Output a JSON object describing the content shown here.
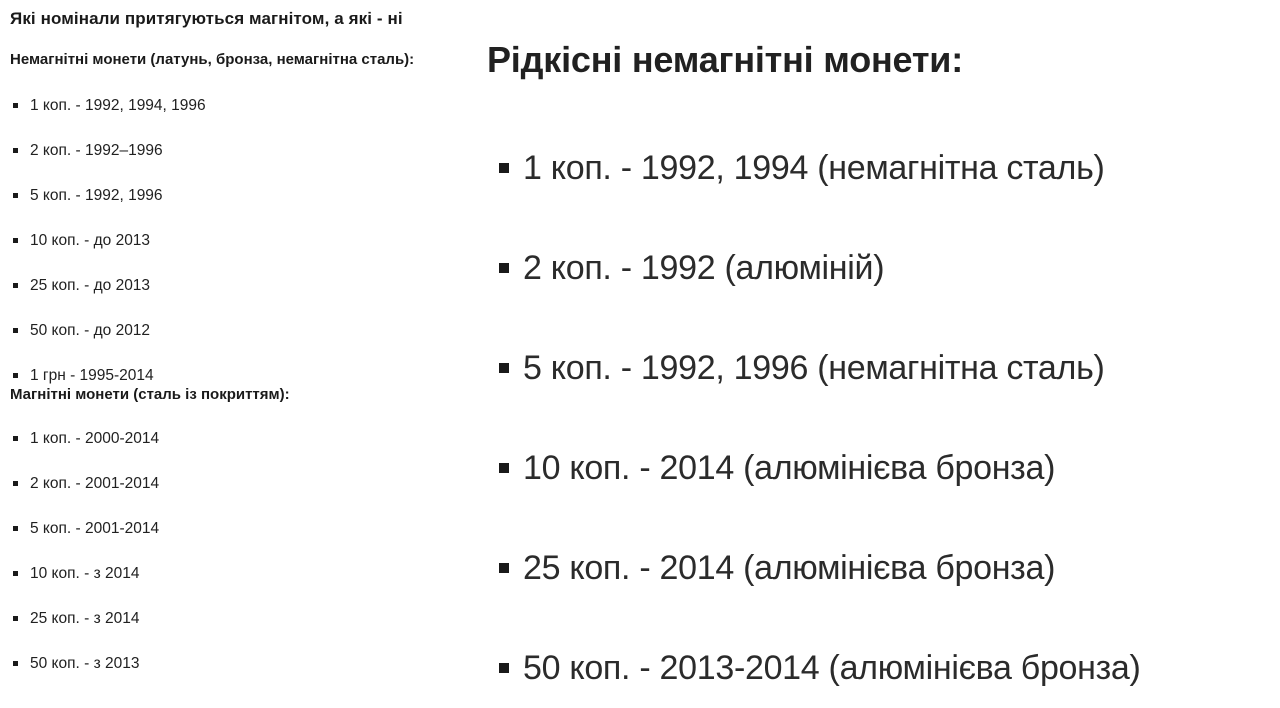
{
  "page": {
    "background_color": "#ffffff",
    "text_color": "#212121",
    "bullet_color": "#1a1a1a"
  },
  "left_column": {
    "title": "Які номінали притягуються магнітом, а які - ні",
    "sections": [
      {
        "heading": "Немагнітні монети (латунь, бронза, немагнітна сталь):",
        "items": [
          "1 коп. - 1992, 1994, 1996",
          "2 коп. - 1992–1996",
          "5 коп. - 1992, 1996",
          "10 коп. - до 2013",
          "25 коп. - до 2013",
          "50 коп. - до 2012",
          "1 грн - 1995-2014"
        ]
      },
      {
        "heading": "Магнітні монети (сталь із покриттям):",
        "items": [
          "1 коп. - 2000-2014",
          "2 коп. - 2001-2014",
          "5 коп. - 2001-2014",
          "10 коп. - з 2014",
          "25 коп. - з 2014",
          "50 коп. - з 2013"
        ]
      }
    ]
  },
  "right_column": {
    "title": "Рідкісні немагнітні монети:",
    "items": [
      "1 коп. - 1992, 1994 (немагнітна сталь)",
      "2 коп. - 1992 (алюміній)",
      "5 коп. - 1992, 1996 (немагнітна сталь)",
      "10 коп. - 2014 (алюмінієва бронза)",
      "25 коп. - 2014 (алюмінієва бронза)",
      "50 коп. - 2013-2014 (алюмінієва бронза)"
    ]
  }
}
